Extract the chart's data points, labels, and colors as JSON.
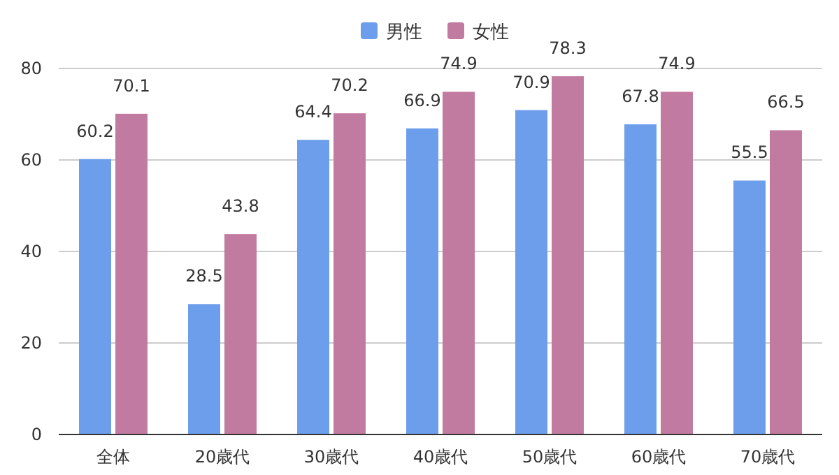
{
  "chart_data": {
    "type": "bar",
    "categories": [
      "全体",
      "20歳代",
      "30歳代",
      "40歳代",
      "50歳代",
      "60歳代",
      "70歳代"
    ],
    "series": [
      {
        "name": "男性",
        "color": "#6d9eeb",
        "values": [
          60.2,
          28.5,
          64.4,
          66.9,
          70.9,
          67.8,
          55.5
        ]
      },
      {
        "name": "女性",
        "color": "#c27ba0",
        "values": [
          70.1,
          43.8,
          70.2,
          74.9,
          78.3,
          74.9,
          66.5
        ]
      }
    ],
    "ylim": [
      0,
      80
    ],
    "yticks": [
      0,
      20,
      40,
      60,
      80
    ],
    "grid": "y",
    "legend": "top",
    "data_labels": true
  }
}
